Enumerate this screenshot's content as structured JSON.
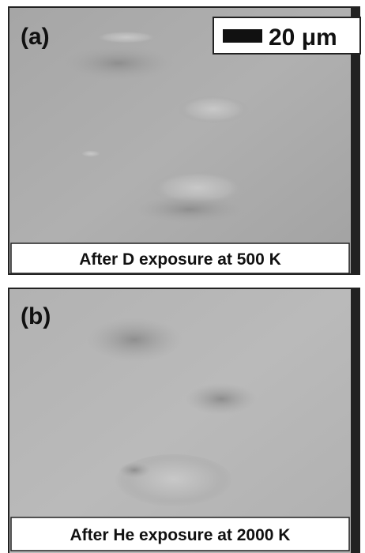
{
  "figure": {
    "panels": [
      {
        "label": "(a)",
        "caption": "After D exposure at 500 K",
        "scale_bar": "20 μm"
      },
      {
        "label": "(b)",
        "caption": "After He exposure at 2000 K"
      }
    ]
  }
}
